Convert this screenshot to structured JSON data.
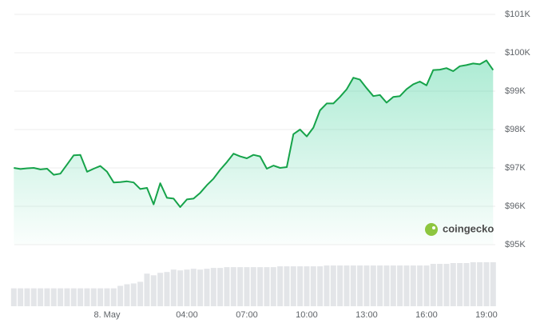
{
  "chart_data": {
    "type": "line",
    "color": "#16a34a",
    "values": [
      97000,
      96970,
      96990,
      97000,
      96960,
      96980,
      96820,
      96850,
      97090,
      97330,
      97340,
      96900,
      96980,
      97050,
      96900,
      96620,
      96630,
      96650,
      96620,
      96450,
      96480,
      96050,
      96600,
      96220,
      96200,
      95980,
      96180,
      96200,
      96350,
      96550,
      96720,
      96950,
      97150,
      97370,
      97300,
      97250,
      97340,
      97300,
      96980,
      97060,
      97000,
      97020,
      97880,
      98000,
      97820,
      98050,
      98500,
      98680,
      98680,
      98850,
      99050,
      99350,
      99300,
      99080,
      98870,
      98900,
      98700,
      98850,
      98870,
      99050,
      99180,
      99250,
      99150,
      99550,
      99560,
      99600,
      99520,
      99650,
      99680,
      99720,
      99700,
      99800,
      99550
    ],
    "volume": [
      22,
      22,
      22,
      22,
      22,
      22,
      22,
      22,
      22,
      22,
      22,
      22,
      22,
      22,
      22,
      22,
      25,
      27,
      28,
      30,
      40,
      38,
      41,
      42,
      45,
      44,
      45,
      46,
      45,
      46,
      47,
      47,
      48,
      48,
      48,
      48,
      48,
      48,
      48,
      48,
      49,
      49,
      49,
      49,
      49,
      49,
      49,
      50,
      50,
      50,
      50,
      50,
      50,
      50,
      50,
      50,
      50,
      50,
      50,
      50,
      50,
      50,
      50,
      52,
      52,
      52,
      53,
      53,
      53,
      54,
      54,
      54,
      54
    ],
    "volume_color": "#e3e5e8",
    "ylim": [
      95000,
      101000
    ],
    "yticks": [
      {
        "value": 95000,
        "label": "$95K"
      },
      {
        "value": 96000,
        "label": "$96K"
      },
      {
        "value": 97000,
        "label": "$97K"
      },
      {
        "value": 98000,
        "label": "$98K"
      },
      {
        "value": 99000,
        "label": "$99K"
      },
      {
        "value": 100000,
        "label": "$100K"
      },
      {
        "value": 101000,
        "label": "$101K"
      }
    ],
    "xticks": [
      {
        "value": 14,
        "label": "8. May"
      },
      {
        "value": 26,
        "label": "04:00"
      },
      {
        "value": 35,
        "label": "07:00"
      },
      {
        "value": 44,
        "label": "10:00"
      },
      {
        "value": 53,
        "label": "13:00"
      },
      {
        "value": 62,
        "label": "16:00"
      },
      {
        "value": 71,
        "label": "19:00"
      }
    ],
    "grid": true,
    "watermark": "coingecko"
  }
}
